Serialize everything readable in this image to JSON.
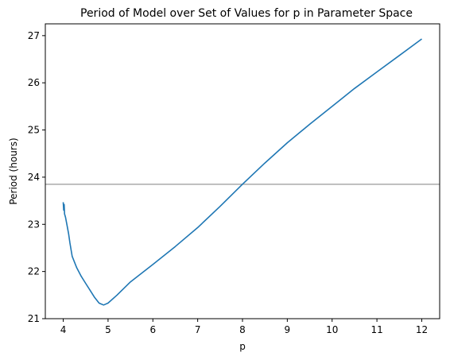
{
  "chart_data": {
    "type": "line",
    "title": "Period of Model over Set of Values for p in Parameter Space",
    "xlabel": "p",
    "ylabel": "Period (hours)",
    "xlim": [
      3.6,
      12.4
    ],
    "ylim": [
      21.0,
      27.25
    ],
    "xticks": [
      4,
      5,
      6,
      7,
      8,
      9,
      10,
      11,
      12
    ],
    "yticks": [
      21,
      22,
      23,
      24,
      25,
      26,
      27
    ],
    "grid": false,
    "legend": "none",
    "reference_line": {
      "orientation": "horizontal",
      "y": 23.85,
      "color": "#aaaaaa"
    },
    "series": [
      {
        "color": "#1f77b4",
        "points": [
          [
            4.0,
            23.47
          ],
          [
            4.01,
            23.3
          ],
          [
            4.02,
            23.42
          ],
          [
            4.03,
            23.22
          ],
          [
            4.05,
            23.15
          ],
          [
            4.08,
            23.0
          ],
          [
            4.12,
            22.8
          ],
          [
            4.15,
            22.6
          ],
          [
            4.2,
            22.32
          ],
          [
            4.3,
            22.08
          ],
          [
            4.4,
            21.9
          ],
          [
            4.5,
            21.75
          ],
          [
            4.6,
            21.6
          ],
          [
            4.7,
            21.45
          ],
          [
            4.8,
            21.33
          ],
          [
            4.9,
            21.29
          ],
          [
            5.0,
            21.33
          ],
          [
            5.2,
            21.5
          ],
          [
            5.5,
            21.78
          ],
          [
            6.0,
            22.15
          ],
          [
            6.5,
            22.53
          ],
          [
            7.0,
            22.93
          ],
          [
            7.5,
            23.38
          ],
          [
            8.0,
            23.85
          ],
          [
            8.5,
            24.3
          ],
          [
            9.0,
            24.73
          ],
          [
            9.5,
            25.12
          ],
          [
            10.0,
            25.5
          ],
          [
            10.5,
            25.88
          ],
          [
            11.0,
            26.23
          ],
          [
            11.5,
            26.58
          ],
          [
            12.0,
            26.93
          ]
        ]
      }
    ]
  }
}
